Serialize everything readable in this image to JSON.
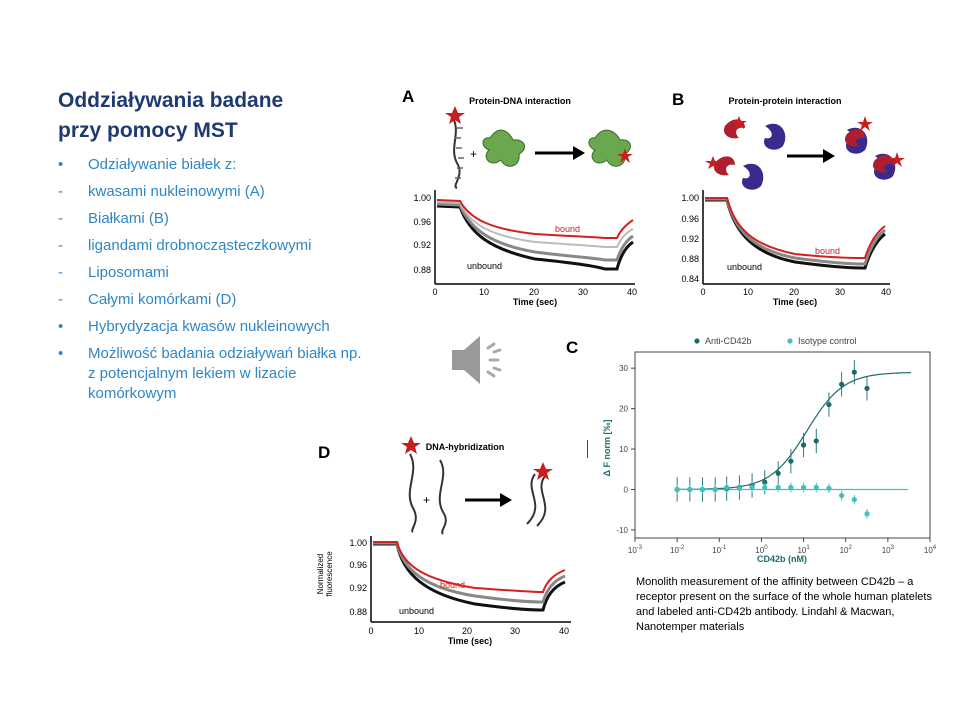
{
  "slide": {
    "title_lines": [
      "Oddziaływania badane",
      "przy pomocy MST"
    ],
    "bullets": [
      {
        "marker": "•",
        "text": "Odziaływanie białek z:"
      },
      {
        "marker": "-",
        "text": "kwasami nukleinowymi (A)"
      },
      {
        "marker": "-",
        "text": "Białkami (B)"
      },
      {
        "marker": "-",
        "text": "ligandami drobnocząsteczkowymi"
      },
      {
        "marker": "-",
        "text": "Liposomami"
      },
      {
        "marker": "-",
        "text": "Całymi komórkami  (D)"
      },
      {
        "marker": "•",
        "text": "Hybrydyzacja kwasów nukleinowych"
      },
      {
        "marker": "•",
        "text": "Możliwość badania odziaływań białka np. z potencjalnym lekiem w lizacie komórkowym"
      }
    ],
    "caption": "Monolith measurement of the affinity between CD42b – a  receptor present on the surface of the whole human platelets and labeled anti-CD42b antibody. Lindahl  & Macwan, Nanotemper materials"
  },
  "panels": {
    "A": {
      "letter": "A",
      "heading": "Protein-DNA interaction",
      "bound": "bound",
      "unbound": "unbound",
      "xlabel": "Time (sec)",
      "yticks": [
        "1.00",
        "0.96",
        "0.92",
        "0.88"
      ],
      "xticks": [
        "0",
        "10",
        "20",
        "30",
        "40"
      ]
    },
    "B": {
      "letter": "B",
      "heading": "Protein-protein interaction",
      "bound": "bound",
      "unbound": "unbound",
      "xlabel": "Time (sec)",
      "yticks": [
        "1.00",
        "0.96",
        "0.92",
        "0.88",
        "0.84"
      ],
      "xticks": [
        "0",
        "10",
        "20",
        "30",
        "40"
      ]
    },
    "C": {
      "letter": "C"
    },
    "D": {
      "letter": "D",
      "heading": "DNA-hybridization",
      "bound": "bound",
      "unbound": "unbound",
      "xlabel": "Time (sec)",
      "ylabel_line1": "Normalized",
      "ylabel_line2": "fluorescence",
      "yticks": [
        "1.00",
        "0.96",
        "0.92",
        "0.88"
      ],
      "xticks": [
        "0",
        "10",
        "20",
        "30",
        "40"
      ]
    }
  },
  "colors": {
    "title": "#1f3a73",
    "bullets": "#2e86c8",
    "bound": "#d42020",
    "anti": "#1b6b6b",
    "isotype": "#3fbfbf"
  },
  "chart_data": {
    "type": "scatter",
    "xlabel": "CD42b (nM)",
    "ylabel": "Δ F norm [‰]",
    "xscale": "log",
    "xlim": [
      0.001,
      10000
    ],
    "ylim": [
      -12,
      34
    ],
    "xtick_exponents": [
      -3,
      -2,
      -1,
      0,
      1,
      2,
      3,
      4
    ],
    "yticks": [
      30,
      20,
      10,
      0,
      -10
    ],
    "legend": "top",
    "series": [
      {
        "name": "Anti-CD42b",
        "color": "#1b6b6b",
        "x": [
          0.01,
          0.02,
          0.04,
          0.08,
          0.15,
          0.3,
          0.6,
          1.2,
          2.5,
          5,
          10,
          20,
          40,
          80,
          160,
          320
        ],
        "y": [
          0,
          0,
          0,
          0,
          0.2,
          0.5,
          1,
          1.8,
          4,
          7,
          11,
          12,
          21,
          26,
          29,
          25
        ]
      },
      {
        "name": "Isotype control",
        "color": "#3fbfbf",
        "x": [
          0.01,
          0.02,
          0.04,
          0.08,
          0.15,
          0.3,
          0.6,
          1.2,
          2.5,
          5,
          10,
          20,
          40,
          80,
          160,
          320
        ],
        "y": [
          0,
          0,
          0,
          0,
          0.5,
          0.3,
          0.5,
          0.5,
          0.5,
          0.5,
          0.5,
          0.5,
          0.3,
          -1.5,
          -2.5,
          -6
        ]
      }
    ],
    "fits": [
      {
        "name": "Anti-CD42b",
        "kd": 12,
        "max": 29
      },
      {
        "name": "Isotype control",
        "flat": 0
      }
    ]
  }
}
